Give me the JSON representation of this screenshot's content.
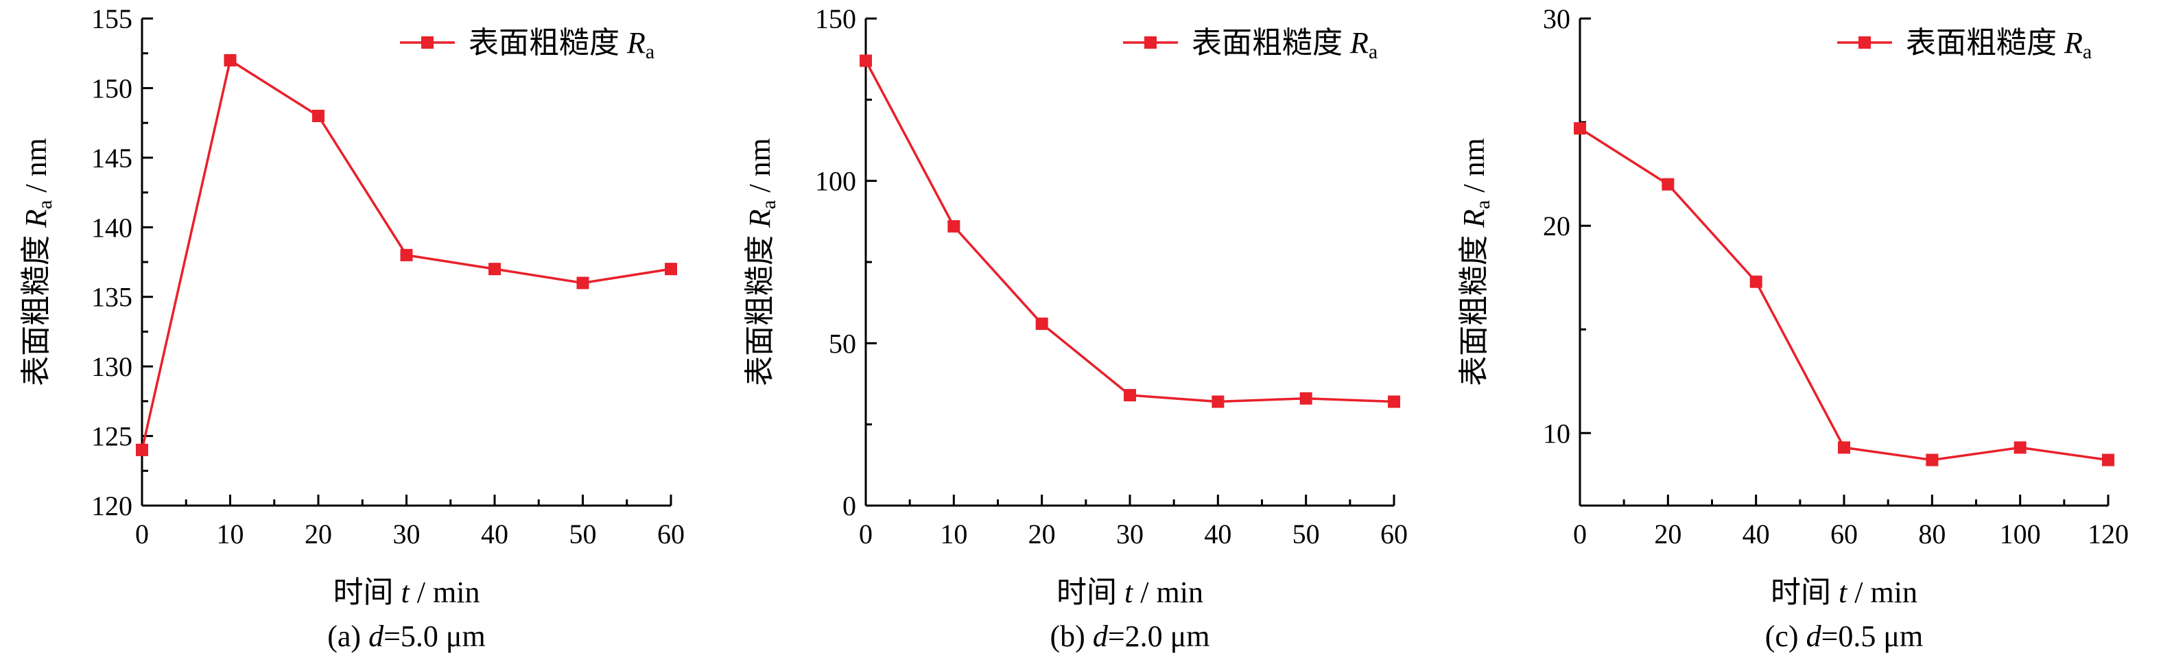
{
  "colors": {
    "series": "#e8212b",
    "axis": "#000000"
  },
  "chart_data": [
    {
      "type": "line",
      "caption": "(a) d=5.0 μm",
      "caption_parts": {
        "prefix": "(a) ",
        "var": "d",
        "suffix": "=5.0 μm"
      },
      "xlabel": "时间 t / min",
      "xlabel_parts": {
        "prefix": "时间 ",
        "var": "t",
        "suffix": " / min"
      },
      "ylabel": "表面粗糙度 Ra / nm",
      "ylabel_parts": {
        "prefix": "表面粗糙度 ",
        "var": "R",
        "sub": "a",
        "suffix": " / nm"
      },
      "xlim": [
        0,
        60
      ],
      "ylim": [
        120,
        155
      ],
      "xticks": [
        0,
        10,
        20,
        30,
        40,
        50,
        60
      ],
      "yticks": [
        120,
        125,
        130,
        135,
        140,
        145,
        150,
        155
      ],
      "legend_position": "top-right",
      "series": [
        {
          "name": "表面粗糙度 Ra",
          "name_parts": {
            "prefix": "表面粗糙度 ",
            "var": "R",
            "sub": "a"
          },
          "x": [
            0,
            10,
            20,
            30,
            40,
            50,
            60
          ],
          "y": [
            124,
            152,
            148,
            138,
            137,
            136,
            137
          ]
        }
      ]
    },
    {
      "type": "line",
      "caption": "(b) d=2.0 μm",
      "caption_parts": {
        "prefix": "(b) ",
        "var": "d",
        "suffix": "=2.0 μm"
      },
      "xlabel": "时间 t / min",
      "xlabel_parts": {
        "prefix": "时间 ",
        "var": "t",
        "suffix": " / min"
      },
      "ylabel": "表面粗糙度 Ra / nm",
      "ylabel_parts": {
        "prefix": "表面粗糙度 ",
        "var": "R",
        "sub": "a",
        "suffix": " / nm"
      },
      "xlim": [
        0,
        60
      ],
      "ylim": [
        0,
        150
      ],
      "xticks": [
        0,
        10,
        20,
        30,
        40,
        50,
        60
      ],
      "yticks": [
        0,
        50,
        100,
        150
      ],
      "legend_position": "top-right",
      "series": [
        {
          "name": "表面粗糙度 Ra",
          "name_parts": {
            "prefix": "表面粗糙度 ",
            "var": "R",
            "sub": "a"
          },
          "x": [
            0,
            10,
            20,
            30,
            40,
            50,
            60
          ],
          "y": [
            137,
            86,
            56,
            34,
            32,
            33,
            32
          ]
        }
      ]
    },
    {
      "type": "line",
      "caption": "(c) d=0.5 μm",
      "caption_parts": {
        "prefix": "(c) ",
        "var": "d",
        "suffix": "=0.5 μm"
      },
      "xlabel": "时间 t / min",
      "xlabel_parts": {
        "prefix": "时间 ",
        "var": "t",
        "suffix": " / min"
      },
      "ylabel": "表面粗糙度 Ra / nm",
      "ylabel_parts": {
        "prefix": "表面粗糙度 ",
        "var": "R",
        "sub": "a",
        "suffix": " / nm"
      },
      "xlim": [
        0,
        120
      ],
      "ylim": [
        6.5,
        30
      ],
      "xticks": [
        0,
        20,
        40,
        60,
        80,
        100,
        120
      ],
      "yticks": [
        10,
        20,
        30
      ],
      "legend_position": "top-right",
      "series": [
        {
          "name": "表面粗糙度 Ra",
          "name_parts": {
            "prefix": "表面粗糙度 ",
            "var": "R",
            "sub": "a"
          },
          "x": [
            0,
            20,
            40,
            60,
            80,
            100,
            120
          ],
          "y": [
            24.7,
            22,
            17.3,
            9.3,
            8.7,
            9.3,
            8.7
          ]
        }
      ]
    }
  ]
}
